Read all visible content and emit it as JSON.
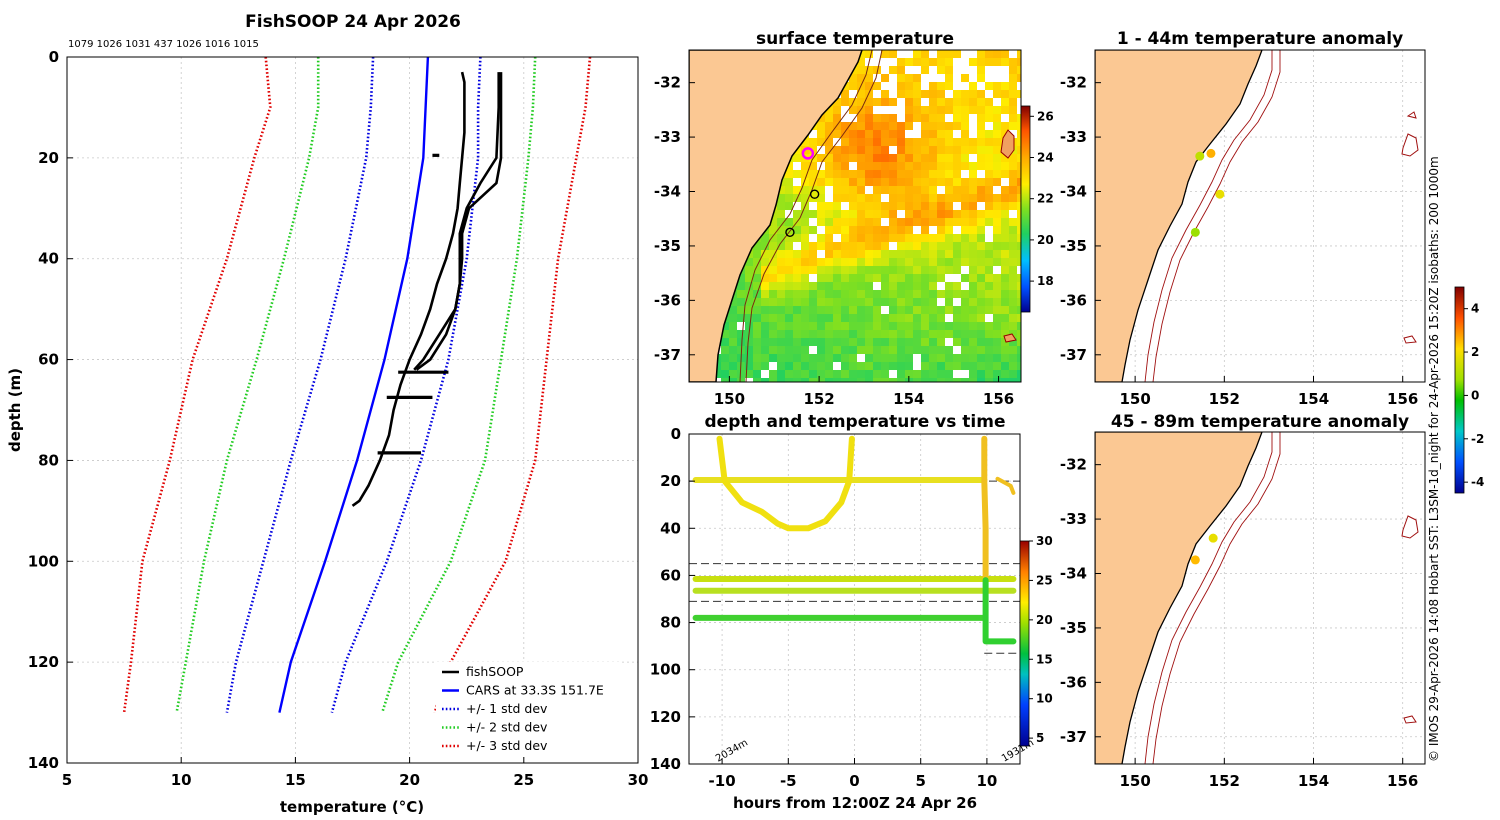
{
  "credit": "© IMOS 29-Apr-2026 14:08 Hobart SST: L3SM-1d_night for 24-Apr-2026 15:20Z isobaths: 200  1000m",
  "chart_data": [
    {
      "id": "profile",
      "type": "line",
      "title": "FishSOOP 24 Apr 2026",
      "subtitle": "1079 1026 1031 437 1026 1016 1015",
      "xlabel": "temperature (°C)",
      "ylabel": "depth (m)",
      "xlim": [
        5,
        30
      ],
      "ylim": [
        140,
        0
      ],
      "xticks": [
        "5",
        "10",
        "15",
        "20",
        "25",
        "30"
      ],
      "yticks": [
        "0",
        "20",
        "40",
        "60",
        "80",
        "100",
        "120",
        "140"
      ],
      "grid": true,
      "legend_position": "bottom-right",
      "legend": [
        "fishSOOP",
        "CARS at 33.3S 151.7E",
        "+/- 1 std dev",
        "+/- 2 std dev",
        "+/- 3 std dev"
      ],
      "colors": {
        "fishsoop": "#000000",
        "cars": "#0000ff",
        "sd1": "#0000e0",
        "sd2": "#22cc22",
        "sd3": "#e00000"
      },
      "depths": [
        0,
        10,
        20,
        40,
        60,
        80,
        100,
        120,
        130
      ],
      "cars": [
        20.8,
        20.7,
        20.6,
        19.9,
        18.9,
        17.7,
        16.3,
        14.8,
        14.3
      ],
      "sd1_lo": [
        18.4,
        18.3,
        18.1,
        17.2,
        16.1,
        14.8,
        13.6,
        12.4,
        12.0
      ],
      "sd1_hi": [
        23.1,
        23.0,
        23.0,
        22.5,
        21.7,
        20.5,
        19.0,
        17.2,
        16.6
      ],
      "sd2_lo": [
        16.0,
        16.0,
        15.6,
        14.5,
        13.3,
        12.0,
        11.0,
        10.2,
        9.8
      ],
      "sd2_hi": [
        25.5,
        25.4,
        25.2,
        24.7,
        24.0,
        23.3,
        21.8,
        19.5,
        18.8
      ],
      "sd3_lo": [
        13.7,
        13.9,
        13.2,
        12.0,
        10.5,
        9.5,
        8.3,
        7.8,
        7.5
      ],
      "sd3_hi": [
        27.9,
        27.7,
        27.3,
        26.5,
        26.0,
        25.5,
        24.2,
        21.8,
        21.1
      ],
      "fishsoop_casts": [
        {
          "depth": [
            3,
            5,
            10,
            15,
            20,
            25,
            30,
            35,
            40,
            45,
            50,
            55,
            60,
            65,
            70,
            75,
            80,
            85,
            88,
            89
          ],
          "temp": [
            22.3,
            22.4,
            22.4,
            22.4,
            22.3,
            22.2,
            22.1,
            21.9,
            21.6,
            21.2,
            20.9,
            20.5,
            20.0,
            19.6,
            19.3,
            19.1,
            18.7,
            18.2,
            17.8,
            17.5
          ]
        },
        {
          "depth": [
            3,
            10,
            20,
            25,
            30,
            35,
            40,
            45,
            50,
            55,
            60,
            62
          ],
          "temp": [
            24.0,
            24.0,
            24.0,
            23.8,
            22.6,
            22.3,
            22.3,
            22.2,
            22.0,
            21.3,
            20.6,
            20.2
          ]
        },
        {
          "depth": [
            3,
            10,
            20,
            25,
            30,
            35,
            40,
            45,
            50,
            55,
            60,
            62
          ],
          "temp": [
            23.9,
            23.9,
            23.8,
            23.1,
            22.5,
            22.2,
            22.2,
            22.2,
            22.0,
            21.6,
            20.9,
            20.3
          ]
        }
      ]
    },
    {
      "id": "sst",
      "type": "heatmap",
      "title": "surface temperature",
      "xticks": [
        "150",
        "152",
        "154",
        "156"
      ],
      "yticks": [
        "-32",
        "-33",
        "-34",
        "-35",
        "-36",
        "-37"
      ],
      "xlim": [
        149.1,
        156.5
      ],
      "ylim": [
        -37.5,
        -31.4
      ],
      "colorbar_ticks": [
        "26",
        "24",
        "22",
        "20",
        "18"
      ],
      "colorbar_range": [
        16.5,
        26.5
      ],
      "casts": [
        {
          "lon": 151.75,
          "lat": -33.3,
          "type": "highlighted"
        },
        {
          "lon": 151.9,
          "lat": -34.05,
          "type": "station"
        },
        {
          "lon": 151.35,
          "lat": -34.75,
          "type": "station"
        }
      ]
    },
    {
      "id": "time",
      "type": "scatter",
      "title": "depth and temperature vs time",
      "xlabel": "hours from 12:00Z 24 Apr 26",
      "xlim": [
        -12.5,
        12.5
      ],
      "ylim": [
        140,
        0
      ],
      "xticks": [
        "-10",
        "-5",
        "0",
        "5",
        "10"
      ],
      "yticks": [
        "0",
        "20",
        "40",
        "60",
        "80",
        "100",
        "120",
        "140"
      ],
      "colorbar_ticks": [
        "30",
        "25",
        "20",
        "15",
        "10",
        "5"
      ],
      "colorbar_range": [
        4,
        30
      ],
      "annotations": [
        "2034m",
        "1931m"
      ],
      "reference_depths": [
        20,
        55,
        71,
        93
      ]
    },
    {
      "id": "anom1",
      "type": "scatter",
      "title": "1 - 44m temperature anomaly",
      "xticks": [
        "150",
        "152",
        "154",
        "156"
      ],
      "yticks": [
        "-32",
        "-33",
        "-34",
        "-35",
        "-36",
        "-37"
      ],
      "xlim": [
        149.1,
        156.5
      ],
      "ylim": [
        -37.5,
        -31.4
      ],
      "points": [
        {
          "lon": 151.45,
          "lat": -33.35,
          "anomaly": 1.2
        },
        {
          "lon": 151.7,
          "lat": -33.3,
          "anomaly": 2.6
        },
        {
          "lon": 151.9,
          "lat": -34.05,
          "anomaly": 1.8
        },
        {
          "lon": 151.35,
          "lat": -34.75,
          "anomaly": 0.7
        }
      ]
    },
    {
      "id": "anom2",
      "type": "scatter",
      "title": "45 - 89m temperature anomaly",
      "xticks": [
        "150",
        "152",
        "154",
        "156"
      ],
      "yticks": [
        "-32",
        "-33",
        "-34",
        "-35",
        "-36",
        "-37"
      ],
      "xlim": [
        149.1,
        156.5
      ],
      "ylim": [
        -37.5,
        -31.4
      ],
      "colorbar_ticks": [
        "4",
        "2",
        "0",
        "-2",
        "-4"
      ],
      "colorbar_range": [
        -4.5,
        5
      ],
      "points": [
        {
          "lon": 151.35,
          "lat": -33.75,
          "anomaly": 2.5
        },
        {
          "lon": 151.75,
          "lat": -33.35,
          "anomaly": 1.8
        }
      ]
    }
  ]
}
